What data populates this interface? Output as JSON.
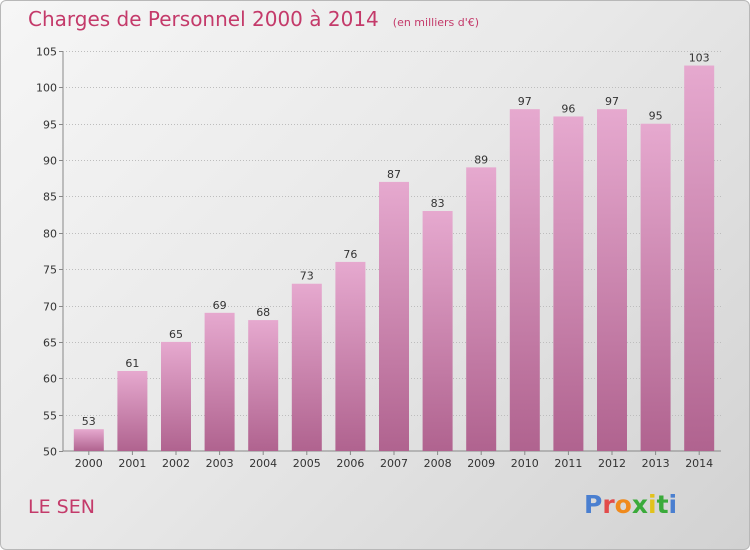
{
  "header": {
    "title": "Charges de Personnel 2000 à 2014",
    "unit": "(en milliers d'€)"
  },
  "footer": {
    "commune": "LE SEN",
    "logo_letters": [
      "P",
      "r",
      "o",
      "x",
      "i",
      "t",
      "i"
    ],
    "logo_colors": [
      "#4a7fd0",
      "#e24b4b",
      "#f08a1c",
      "#3aaa3a",
      "#e2c21c",
      "#3aaa3a",
      "#4a7fd0"
    ]
  },
  "colors": {
    "bar_top": "#e6a9cf",
    "bar_bottom": "#b0638f",
    "title": "#c43a6a",
    "grid": "#bdbdbd",
    "text": "#333333"
  },
  "chart_data": {
    "type": "bar",
    "title": "Charges de Personnel 2000 à 2014",
    "subtitle": "(en milliers d'€)",
    "xlabel": "",
    "ylabel": "",
    "categories": [
      "2000",
      "2001",
      "2002",
      "2003",
      "2004",
      "2005",
      "2006",
      "2007",
      "2008",
      "2009",
      "2010",
      "2011",
      "2012",
      "2013",
      "2014"
    ],
    "values": [
      53,
      61,
      65,
      69,
      68,
      73,
      76,
      87,
      83,
      89,
      97,
      96,
      97,
      95,
      103
    ],
    "ylim": [
      50,
      105
    ],
    "yticks": [
      50,
      55,
      60,
      65,
      70,
      75,
      80,
      85,
      90,
      95,
      100,
      105
    ],
    "grid": true
  }
}
